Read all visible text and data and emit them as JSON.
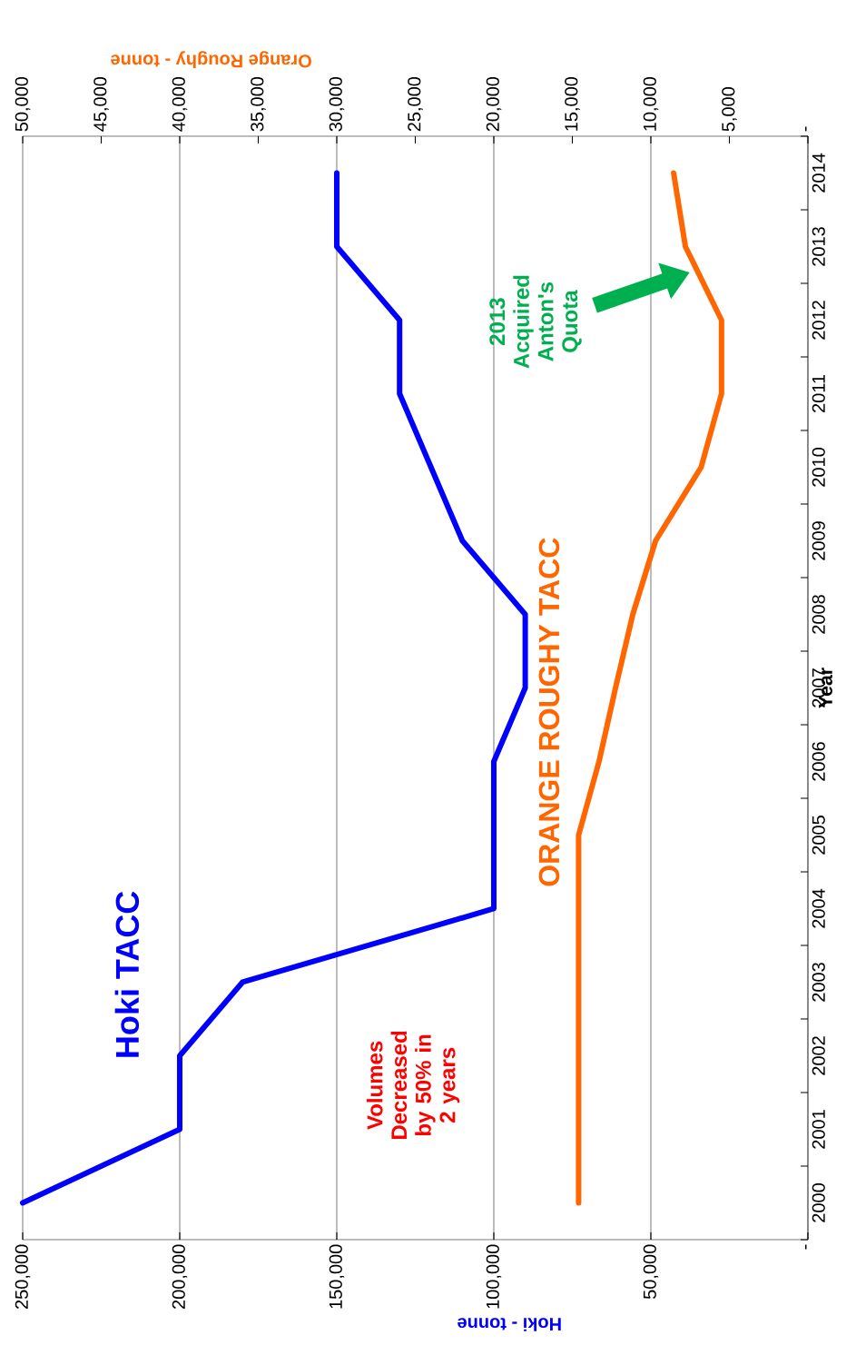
{
  "chart_data": {
    "type": "line",
    "orientation": "horizontal",
    "xlabel": "Hoki - tonne",
    "x2label": "Orange Roughy - tonne",
    "ylabel": "Year",
    "categories": [
      "2014",
      "2013",
      "2012",
      "2011",
      "2010",
      "2009",
      "2008",
      "2007",
      "2006",
      "2005",
      "2004",
      "2003",
      "2002",
      "2001",
      "2000"
    ],
    "series": [
      {
        "name": "Hoki TACC",
        "color": "#0000ff",
        "values": [
          150000,
          150000,
          130000,
          130000,
          120000,
          110000,
          90000,
          90000,
          100000,
          100000,
          100000,
          180000,
          200000,
          200000,
          250000
        ]
      },
      {
        "name": "ORANGE ROUGHY TACC",
        "color": "#ff6600",
        "axis": "x2",
        "values": [
          8550,
          7800,
          5500,
          5500,
          6800,
          9700,
          11150,
          12250,
          13300,
          14600,
          14600,
          14600,
          14600,
          14600,
          14600
        ]
      }
    ],
    "xlim": [
      250000,
      0
    ],
    "xticks": [
      {
        "value": 0,
        "label": "-"
      },
      {
        "value": 50000,
        "label": "50,000"
      },
      {
        "value": 100000,
        "label": "100,000"
      },
      {
        "value": 150000,
        "label": "150,000"
      },
      {
        "value": 200000,
        "label": "200,000"
      },
      {
        "value": 250000,
        "label": "250,000"
      }
    ],
    "x2lim": [
      50000,
      0
    ],
    "x2ticks": [
      {
        "value": 0,
        "label": "-"
      },
      {
        "value": 5000,
        "label": "5,000"
      },
      {
        "value": 10000,
        "label": "10,000"
      },
      {
        "value": 15000,
        "label": "15,000"
      },
      {
        "value": 20000,
        "label": "20,000"
      },
      {
        "value": 25000,
        "label": "25,000"
      },
      {
        "value": 30000,
        "label": "30,000"
      },
      {
        "value": 35000,
        "label": "35,000"
      },
      {
        "value": 40000,
        "label": "40,000"
      },
      {
        "value": 45000,
        "label": "45,000"
      },
      {
        "value": 50000,
        "label": "50,000"
      }
    ],
    "grid": "x",
    "annotations": [
      "Volumes Decreased by 50% in 2 years",
      "2013 Acquired Anton's Quota"
    ]
  }
}
